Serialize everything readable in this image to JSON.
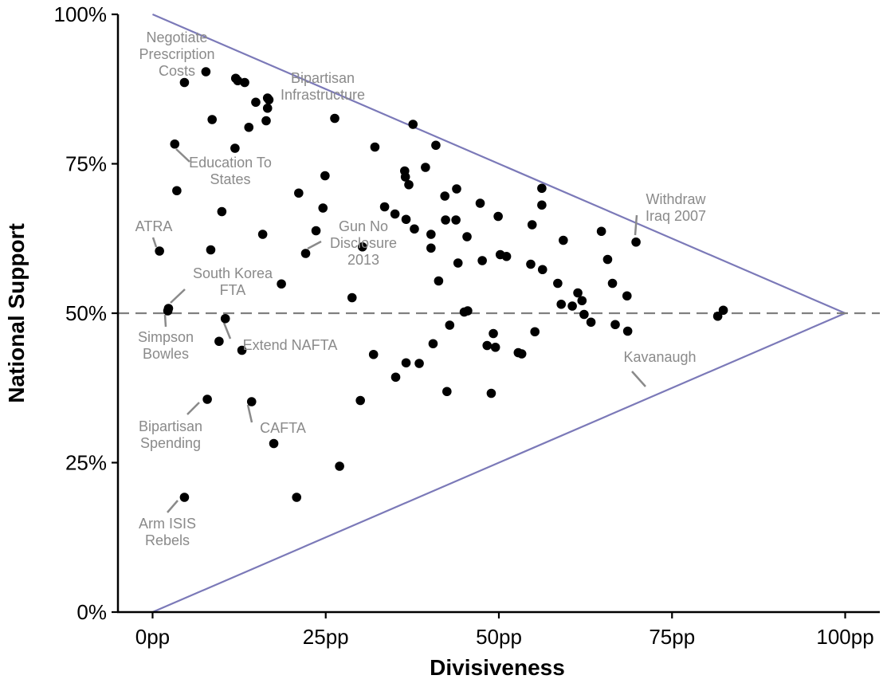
{
  "chart_data": {
    "type": "scatter",
    "xlabel": "Divisiveness",
    "ylabel": "National Support",
    "xlim": [
      -5,
      105
    ],
    "ylim": [
      0,
      100
    ],
    "x_ticks": [
      {
        "value": 0,
        "label": "0pp"
      },
      {
        "value": 25,
        "label": "25pp"
      },
      {
        "value": 50,
        "label": "50pp"
      },
      {
        "value": 75,
        "label": "75pp"
      },
      {
        "value": 100,
        "label": "100pp"
      }
    ],
    "y_ticks": [
      {
        "value": 0,
        "label": "0%"
      },
      {
        "value": 25,
        "label": "25%"
      },
      {
        "value": 50,
        "label": "50%"
      },
      {
        "value": 75,
        "label": "75%"
      },
      {
        "value": 100,
        "label": "100%"
      }
    ],
    "grid": false,
    "reference_line": {
      "y": 50,
      "style": "dashed",
      "color": "#808080"
    },
    "boundary_lines": [
      {
        "points": [
          [
            0,
            100
          ],
          [
            100,
            50
          ]
        ],
        "color": "#7b79b8"
      },
      {
        "points": [
          [
            0,
            0
          ],
          [
            100,
            50
          ]
        ],
        "color": "#7b79b8"
      }
    ],
    "point_color": "#000000",
    "annotation_color": "#8a8a8a",
    "points": [
      {
        "x": 4.6,
        "y": 88.6
      },
      {
        "x": 7.7,
        "y": 90.4
      },
      {
        "x": 12.0,
        "y": 89.3
      },
      {
        "x": 12.3,
        "y": 88.9
      },
      {
        "x": 13.3,
        "y": 88.6
      },
      {
        "x": 8.6,
        "y": 82.4
      },
      {
        "x": 14.9,
        "y": 85.3
      },
      {
        "x": 16.6,
        "y": 86.0
      },
      {
        "x": 16.6,
        "y": 84.3
      },
      {
        "x": 16.8,
        "y": 85.7
      },
      {
        "x": 13.9,
        "y": 81.1
      },
      {
        "x": 16.4,
        "y": 82.2
      },
      {
        "x": 26.3,
        "y": 82.6
      },
      {
        "x": 37.6,
        "y": 81.6
      },
      {
        "x": 3.2,
        "y": 78.3
      },
      {
        "x": 11.9,
        "y": 77.6
      },
      {
        "x": 32.1,
        "y": 77.8
      },
      {
        "x": 40.9,
        "y": 78.1
      },
      {
        "x": 3.5,
        "y": 70.5
      },
      {
        "x": 24.9,
        "y": 73.0
      },
      {
        "x": 36.4,
        "y": 73.8
      },
      {
        "x": 36.5,
        "y": 72.8
      },
      {
        "x": 37.0,
        "y": 71.5
      },
      {
        "x": 39.4,
        "y": 74.4
      },
      {
        "x": 21.1,
        "y": 70.1
      },
      {
        "x": 24.6,
        "y": 67.6
      },
      {
        "x": 10.0,
        "y": 67.0
      },
      {
        "x": 33.5,
        "y": 67.8
      },
      {
        "x": 35.0,
        "y": 66.6
      },
      {
        "x": 36.6,
        "y": 65.7
      },
      {
        "x": 42.2,
        "y": 69.6
      },
      {
        "x": 43.9,
        "y": 70.8
      },
      {
        "x": 47.3,
        "y": 68.4
      },
      {
        "x": 56.2,
        "y": 70.9
      },
      {
        "x": 56.2,
        "y": 68.1
      },
      {
        "x": 42.3,
        "y": 65.6
      },
      {
        "x": 43.8,
        "y": 65.6
      },
      {
        "x": 49.9,
        "y": 66.2
      },
      {
        "x": 54.8,
        "y": 64.8
      },
      {
        "x": 37.8,
        "y": 64.1
      },
      {
        "x": 40.2,
        "y": 63.2
      },
      {
        "x": 45.4,
        "y": 62.8
      },
      {
        "x": 23.6,
        "y": 63.8
      },
      {
        "x": 15.9,
        "y": 63.2
      },
      {
        "x": 59.3,
        "y": 62.2
      },
      {
        "x": 64.8,
        "y": 63.7
      },
      {
        "x": 69.8,
        "y": 61.9
      },
      {
        "x": 1.0,
        "y": 60.4
      },
      {
        "x": 8.4,
        "y": 60.6
      },
      {
        "x": 22.1,
        "y": 60.0
      },
      {
        "x": 30.3,
        "y": 61.1
      },
      {
        "x": 40.2,
        "y": 60.9
      },
      {
        "x": 50.2,
        "y": 59.8
      },
      {
        "x": 51.1,
        "y": 59.5
      },
      {
        "x": 65.7,
        "y": 59.0
      },
      {
        "x": 44.1,
        "y": 58.4
      },
      {
        "x": 47.6,
        "y": 58.8
      },
      {
        "x": 54.6,
        "y": 58.2
      },
      {
        "x": 56.3,
        "y": 57.3
      },
      {
        "x": 18.6,
        "y": 54.9
      },
      {
        "x": 41.3,
        "y": 55.4
      },
      {
        "x": 58.5,
        "y": 55.0
      },
      {
        "x": 66.4,
        "y": 55.0
      },
      {
        "x": 61.4,
        "y": 53.4
      },
      {
        "x": 62.0,
        "y": 52.1
      },
      {
        "x": 60.6,
        "y": 51.2
      },
      {
        "x": 59.0,
        "y": 51.5
      },
      {
        "x": 68.5,
        "y": 52.9
      },
      {
        "x": 28.8,
        "y": 52.6
      },
      {
        "x": 2.3,
        "y": 50.8
      },
      {
        "x": 2.2,
        "y": 50.4
      },
      {
        "x": 45.0,
        "y": 50.2
      },
      {
        "x": 45.5,
        "y": 50.4
      },
      {
        "x": 62.3,
        "y": 49.8
      },
      {
        "x": 63.3,
        "y": 48.5
      },
      {
        "x": 10.5,
        "y": 49.1
      },
      {
        "x": 66.8,
        "y": 48.1
      },
      {
        "x": 68.6,
        "y": 47.0
      },
      {
        "x": 81.6,
        "y": 49.5
      },
      {
        "x": 82.4,
        "y": 50.5
      },
      {
        "x": 42.9,
        "y": 48.0
      },
      {
        "x": 49.2,
        "y": 46.6
      },
      {
        "x": 55.2,
        "y": 46.9
      },
      {
        "x": 9.6,
        "y": 45.3
      },
      {
        "x": 40.5,
        "y": 44.9
      },
      {
        "x": 48.3,
        "y": 44.6
      },
      {
        "x": 49.5,
        "y": 44.3
      },
      {
        "x": 12.9,
        "y": 43.8
      },
      {
        "x": 31.9,
        "y": 43.1
      },
      {
        "x": 52.8,
        "y": 43.4
      },
      {
        "x": 53.3,
        "y": 43.2
      },
      {
        "x": 36.6,
        "y": 41.7
      },
      {
        "x": 38.5,
        "y": 41.6
      },
      {
        "x": 35.1,
        "y": 39.3
      },
      {
        "x": 42.5,
        "y": 36.9
      },
      {
        "x": 48.9,
        "y": 36.6
      },
      {
        "x": 7.9,
        "y": 35.6
      },
      {
        "x": 14.3,
        "y": 35.2
      },
      {
        "x": 30.0,
        "y": 35.4
      },
      {
        "x": 17.5,
        "y": 28.2
      },
      {
        "x": 27.0,
        "y": 24.4
      },
      {
        "x": 4.6,
        "y": 19.2
      },
      {
        "x": 20.8,
        "y": 19.2
      }
    ]
  },
  "annotations": [
    {
      "lines": [
        "Negotiate",
        "Prescription",
        "Costs"
      ],
      "anchor": {
        "x": 7.7,
        "y": 90.4
      }
    },
    {
      "lines": [
        "Bipartisan",
        "Infrastructure"
      ],
      "anchor": {
        "x": 16.8,
        "y": 85.7
      }
    },
    {
      "lines": [
        "Education To",
        "States"
      ],
      "anchor": {
        "x": 3.2,
        "y": 78.3
      }
    },
    {
      "lines": [
        "ATRA"
      ],
      "anchor": {
        "x": 1.0,
        "y": 60.4
      }
    },
    {
      "lines": [
        "Gun No",
        "Disclosure",
        "2013"
      ],
      "anchor": {
        "x": 22.1,
        "y": 60.0
      }
    },
    {
      "lines": [
        "Withdraw",
        "Iraq 2007"
      ],
      "anchor": {
        "x": 69.8,
        "y": 61.9
      }
    },
    {
      "lines": [
        "South Korea",
        "FTA"
      ],
      "anchor": {
        "x": 2.3,
        "y": 50.8
      }
    },
    {
      "lines": [
        "Simpson",
        "Bowles"
      ],
      "anchor": {
        "x": 2.2,
        "y": 50.4
      }
    },
    {
      "lines": [
        "Extend NAFTA"
      ],
      "anchor": {
        "x": 10.5,
        "y": 49.1
      }
    },
    {
      "lines": [
        "Kavanaugh"
      ],
      "anchor": {
        "x": 68.6,
        "y": 47.0
      }
    },
    {
      "lines": [
        "Bipartisan",
        "Spending"
      ],
      "anchor": {
        "x": 7.9,
        "y": 35.6
      }
    },
    {
      "lines": [
        "CAFTA"
      ],
      "anchor": {
        "x": 14.3,
        "y": 35.2
      }
    },
    {
      "lines": [
        "Arm ISIS",
        "Rebels"
      ],
      "anchor": {
        "x": 4.6,
        "y": 19.2
      }
    }
  ]
}
